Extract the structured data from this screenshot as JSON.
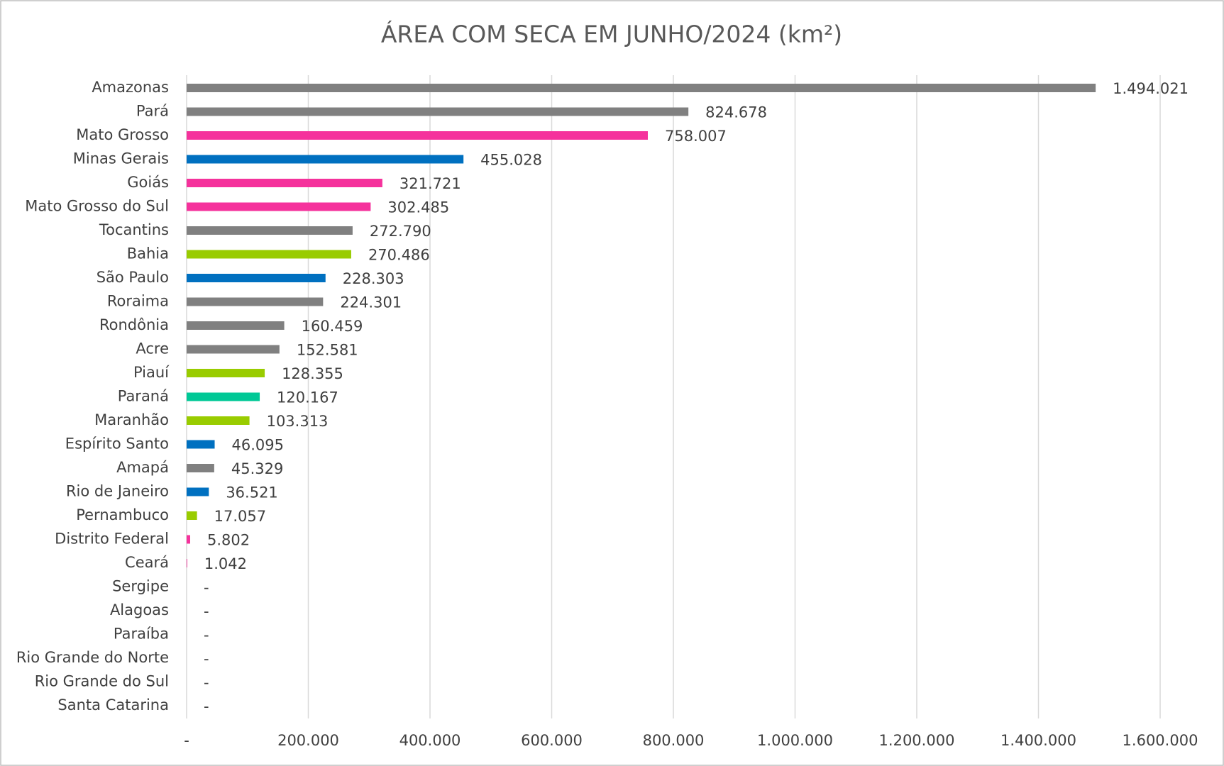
{
  "chart_data": {
    "type": "bar",
    "orientation": "horizontal",
    "title": "ÁREA COM SECA EM JUNHO/2024 (km²)",
    "categories": [
      "Amazonas",
      "Pará",
      "Mato Grosso",
      "Minas Gerais",
      "Goiás",
      "Mato Grosso do Sul",
      "Tocantins",
      "Bahia",
      "São Paulo",
      "Roraima",
      "Rondônia",
      "Acre",
      "Piauí",
      "Paraná",
      "Maranhão",
      "Espírito Santo",
      "Amapá",
      "Rio de Janeiro",
      "Pernambuco",
      "Distrito Federal",
      "Ceará",
      "Sergipe",
      "Alagoas",
      "Paraíba",
      "Rio Grande do Norte",
      "Rio Grande do Sul",
      "Santa Catarina"
    ],
    "values": [
      1494021,
      824678,
      758007,
      455028,
      321721,
      302485,
      272790,
      270486,
      228303,
      224301,
      160459,
      152581,
      128355,
      120167,
      103313,
      46095,
      45329,
      36521,
      17057,
      5802,
      1042,
      0,
      0,
      0,
      0,
      0,
      0
    ],
    "value_labels": [
      "1.494.021",
      "824.678",
      "758.007",
      "455.028",
      "321.721",
      "302.485",
      "272.790",
      "270.486",
      "228.303",
      "224.301",
      "160.459",
      "152.581",
      "128.355",
      "120.167",
      "103.313",
      "46.095",
      "45.329",
      "36.521",
      "17.057",
      "5.802",
      "1.042",
      "-",
      "-",
      "-",
      "-",
      "-",
      "-"
    ],
    "colors": [
      "#808080",
      "#808080",
      "#f5329c",
      "#0070c0",
      "#f5329c",
      "#f5329c",
      "#808080",
      "#99cc00",
      "#0070c0",
      "#808080",
      "#808080",
      "#808080",
      "#99cc00",
      "#00c896",
      "#99cc00",
      "#0070c0",
      "#808080",
      "#0070c0",
      "#99cc00",
      "#f5329c",
      "#f5329c",
      "#808080",
      "#808080",
      "#808080",
      "#808080",
      "#808080",
      "#808080"
    ],
    "xlim": [
      0,
      1600000
    ],
    "xticks": [
      {
        "value": 0,
        "label": "-"
      },
      {
        "value": 200000,
        "label": "200.000"
      },
      {
        "value": 400000,
        "label": "400.000"
      },
      {
        "value": 600000,
        "label": "600.000"
      },
      {
        "value": 800000,
        "label": "800.000"
      },
      {
        "value": 1000000,
        "label": "1.000.000"
      },
      {
        "value": 1200000,
        "label": "1.200.000"
      },
      {
        "value": 1400000,
        "label": "1.400.000"
      },
      {
        "value": 1600000,
        "label": "1.600.000"
      }
    ],
    "grid": true
  }
}
